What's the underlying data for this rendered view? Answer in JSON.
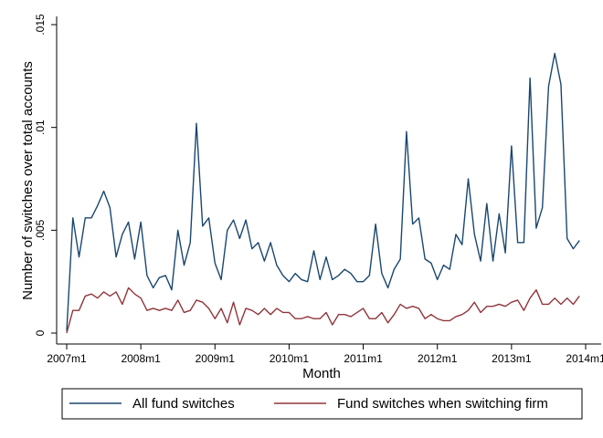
{
  "chart_data": {
    "type": "line",
    "title": "",
    "xlabel": "Month",
    "ylabel": "Number of switches over total accounts",
    "xlim": [
      "2007m1",
      "2014m1"
    ],
    "ylim": [
      0,
      0.015
    ],
    "x_ticks": [
      "2007m1",
      "2008m1",
      "2009m1",
      "2010m1",
      "2011m1",
      "2012m1",
      "2013m1",
      "2014m1"
    ],
    "y_ticks": [
      {
        "value": 0,
        "label": "0"
      },
      {
        "value": 0.005,
        "label": ".005"
      },
      {
        "value": 0.01,
        "label": ".01"
      },
      {
        "value": 0.015,
        "label": ".015"
      }
    ],
    "grid": false,
    "legend_position": "bottom",
    "x": [
      "2007m1",
      "2007m2",
      "2007m3",
      "2007m4",
      "2007m5",
      "2007m6",
      "2007m7",
      "2007m8",
      "2007m9",
      "2007m10",
      "2007m11",
      "2007m12",
      "2008m1",
      "2008m2",
      "2008m3",
      "2008m4",
      "2008m5",
      "2008m6",
      "2008m7",
      "2008m8",
      "2008m9",
      "2008m10",
      "2008m11",
      "2008m12",
      "2009m1",
      "2009m2",
      "2009m3",
      "2009m4",
      "2009m5",
      "2009m6",
      "2009m7",
      "2009m8",
      "2009m9",
      "2009m10",
      "2009m11",
      "2009m12",
      "2010m1",
      "2010m2",
      "2010m3",
      "2010m4",
      "2010m5",
      "2010m6",
      "2010m7",
      "2010m8",
      "2010m9",
      "2010m10",
      "2010m11",
      "2010m12",
      "2011m1",
      "2011m2",
      "2011m3",
      "2011m4",
      "2011m5",
      "2011m6",
      "2011m7",
      "2011m8",
      "2011m9",
      "2011m10",
      "2011m11",
      "2011m12",
      "2012m1",
      "2012m2",
      "2012m3",
      "2012m4",
      "2012m5",
      "2012m6",
      "2012m7",
      "2012m8",
      "2012m9",
      "2012m10",
      "2012m11",
      "2012m12",
      "2013m1",
      "2013m2",
      "2013m3",
      "2013m4",
      "2013m5",
      "2013m6",
      "2013m7",
      "2013m8",
      "2013m9",
      "2013m10",
      "2013m11",
      "2013m12"
    ],
    "series": [
      {
        "name": "All fund switches",
        "color": "#1a476f",
        "values": [
          0.0001,
          0.0056,
          0.0037,
          0.0056,
          0.0056,
          0.0062,
          0.0069,
          0.0061,
          0.0037,
          0.0048,
          0.0054,
          0.0036,
          0.0054,
          0.0028,
          0.0022,
          0.0027,
          0.0028,
          0.0021,
          0.005,
          0.0033,
          0.0044,
          0.0102,
          0.0052,
          0.0056,
          0.0034,
          0.0026,
          0.005,
          0.0055,
          0.0046,
          0.0055,
          0.0041,
          0.0044,
          0.0035,
          0.0044,
          0.0033,
          0.0028,
          0.0025,
          0.0029,
          0.0026,
          0.0025,
          0.004,
          0.0026,
          0.0037,
          0.0026,
          0.0028,
          0.0031,
          0.0029,
          0.0025,
          0.0025,
          0.0028,
          0.0053,
          0.0029,
          0.0022,
          0.0031,
          0.0036,
          0.0098,
          0.0053,
          0.0056,
          0.0036,
          0.0034,
          0.0026,
          0.0033,
          0.0031,
          0.0048,
          0.0043,
          0.0075,
          0.0048,
          0.0035,
          0.0063,
          0.0035,
          0.0058,
          0.0039,
          0.0091,
          0.0044,
          0.0044,
          0.0124,
          0.0051,
          0.0061,
          0.012,
          0.0136,
          0.0121,
          0.0046,
          0.0041,
          0.0045
        ]
      },
      {
        "name": "Fund switches when switching firm",
        "color": "#90353b",
        "values": [
          0.0,
          0.0011,
          0.0011,
          0.0018,
          0.0019,
          0.0017,
          0.002,
          0.0018,
          0.002,
          0.0014,
          0.0022,
          0.0019,
          0.0017,
          0.0011,
          0.0012,
          0.0011,
          0.0012,
          0.0011,
          0.0016,
          0.001,
          0.0011,
          0.0016,
          0.0015,
          0.0012,
          0.0007,
          0.0012,
          0.0005,
          0.0015,
          0.0004,
          0.0012,
          0.0011,
          0.0009,
          0.0012,
          0.0009,
          0.0012,
          0.001,
          0.001,
          0.0007,
          0.0007,
          0.0008,
          0.0007,
          0.0007,
          0.001,
          0.0004,
          0.0009,
          0.0009,
          0.0008,
          0.001,
          0.0012,
          0.0007,
          0.0007,
          0.001,
          0.0005,
          0.0009,
          0.0014,
          0.0012,
          0.0013,
          0.0012,
          0.0007,
          0.0009,
          0.0007,
          0.0006,
          0.0006,
          0.0008,
          0.0009,
          0.0011,
          0.0015,
          0.001,
          0.0013,
          0.0013,
          0.0014,
          0.0013,
          0.0015,
          0.0016,
          0.0011,
          0.0017,
          0.0021,
          0.0014,
          0.0014,
          0.0017,
          0.0014,
          0.0017,
          0.0014,
          0.0018
        ]
      }
    ]
  }
}
